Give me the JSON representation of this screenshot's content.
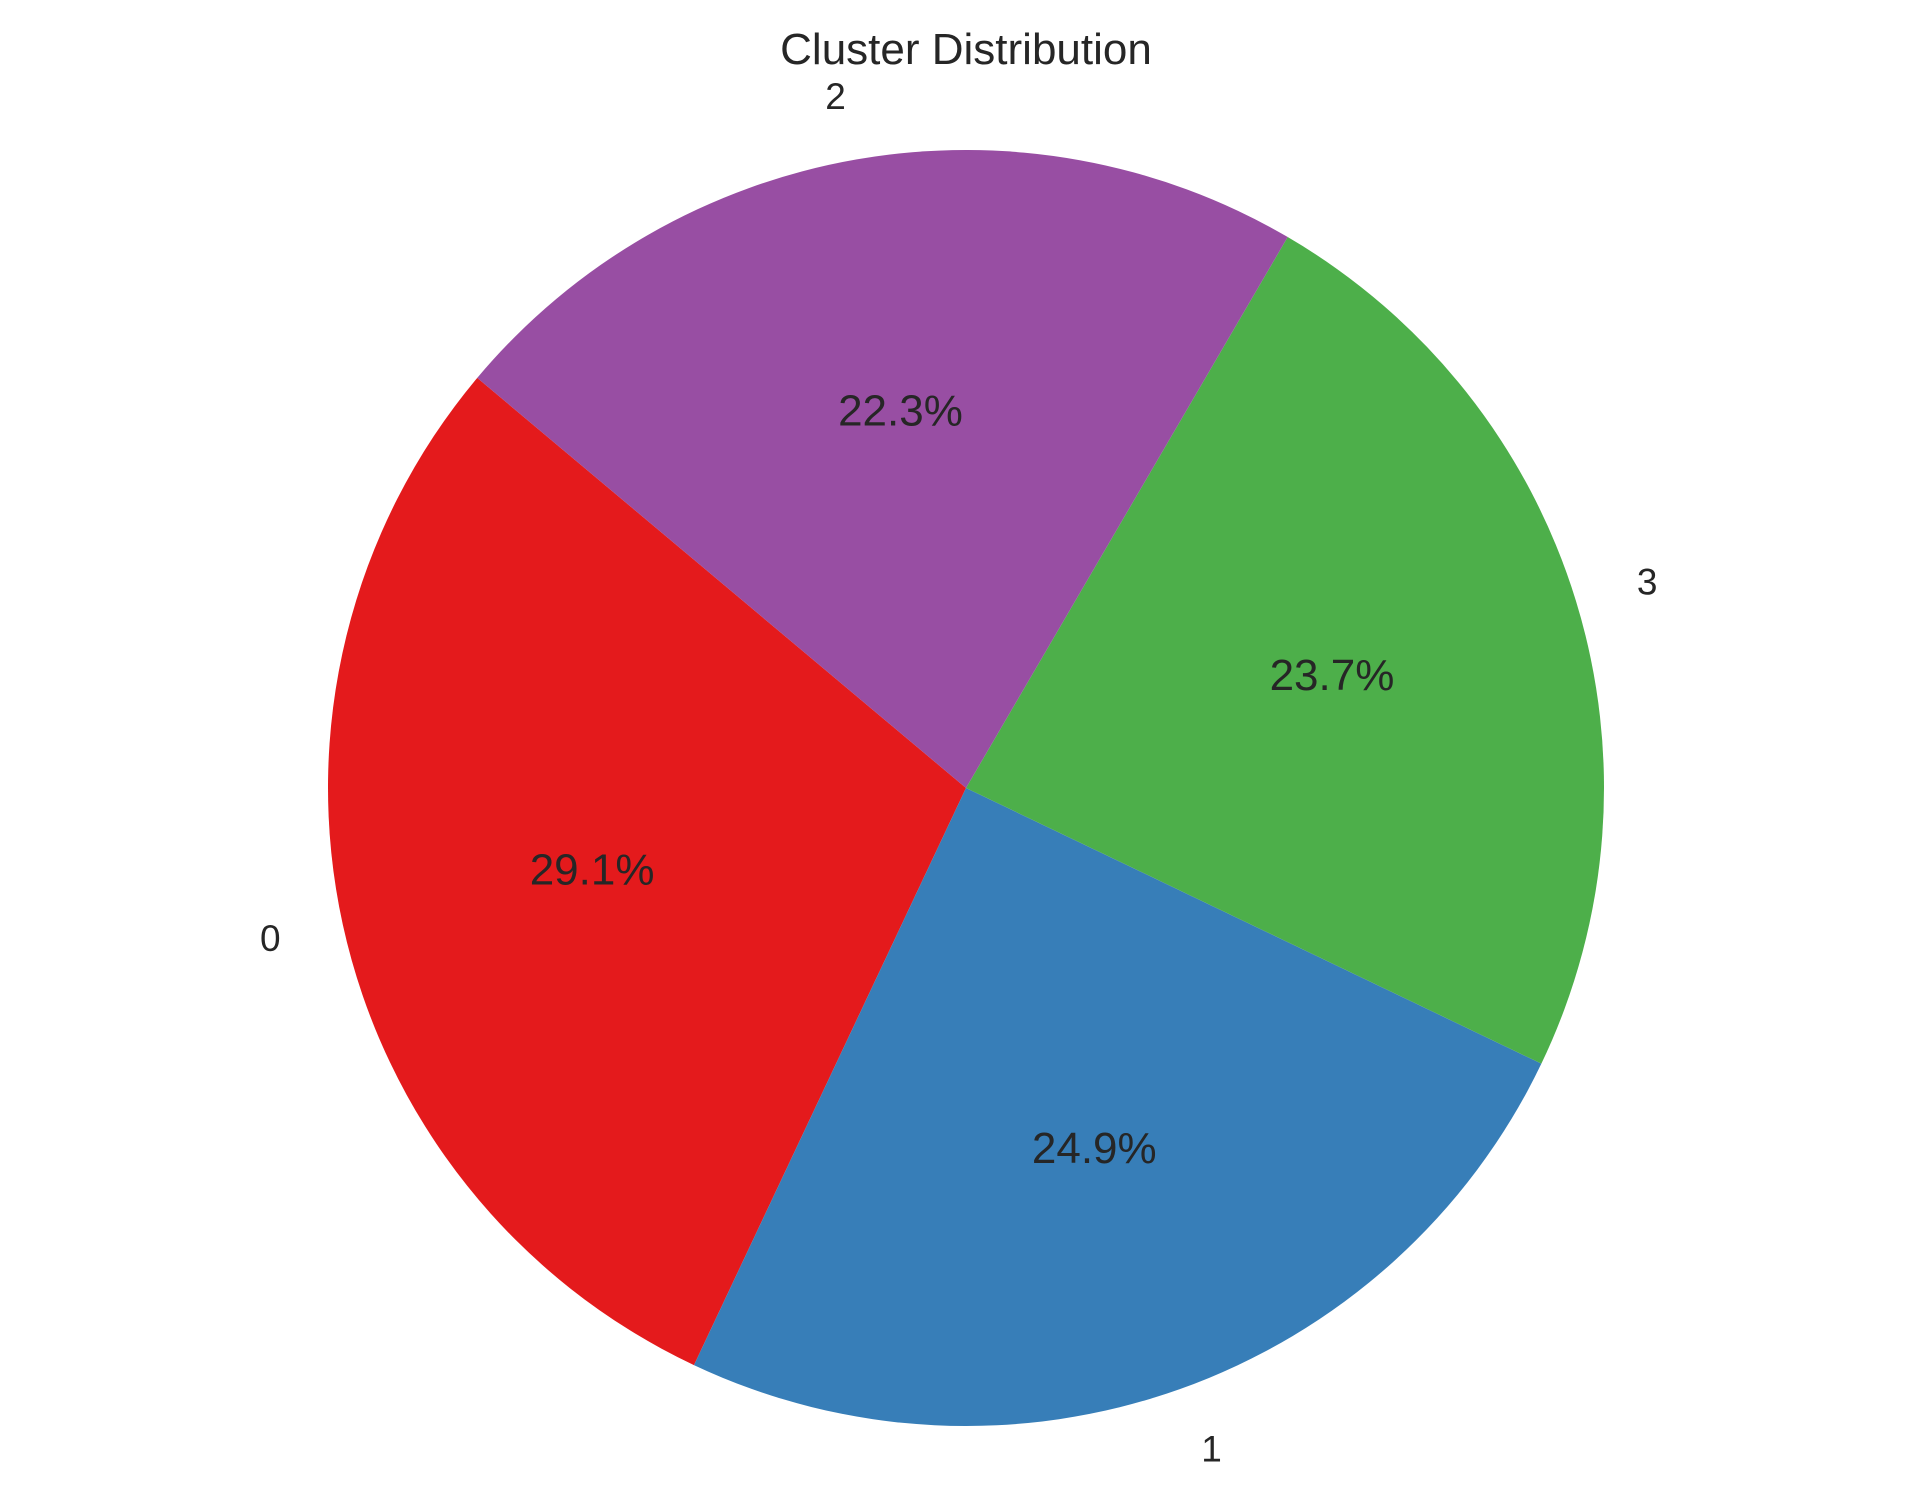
{
  "chart_data": {
    "type": "pie",
    "title": "Cluster Distribution",
    "start_angle_deg": 140,
    "direction": "counterclockwise",
    "slices": [
      {
        "label": "0",
        "value": 29.1,
        "pct_label": "29.1%",
        "color": "#e41a1c"
      },
      {
        "label": "1",
        "value": 24.9,
        "pct_label": "24.9%",
        "color": "#377eb8"
      },
      {
        "label": "3",
        "value": 23.7,
        "pct_label": "23.7%",
        "color": "#4daf4a"
      },
      {
        "label": "2",
        "value": 22.3,
        "pct_label": "22.3%",
        "color": "#984ea3"
      }
    ]
  }
}
